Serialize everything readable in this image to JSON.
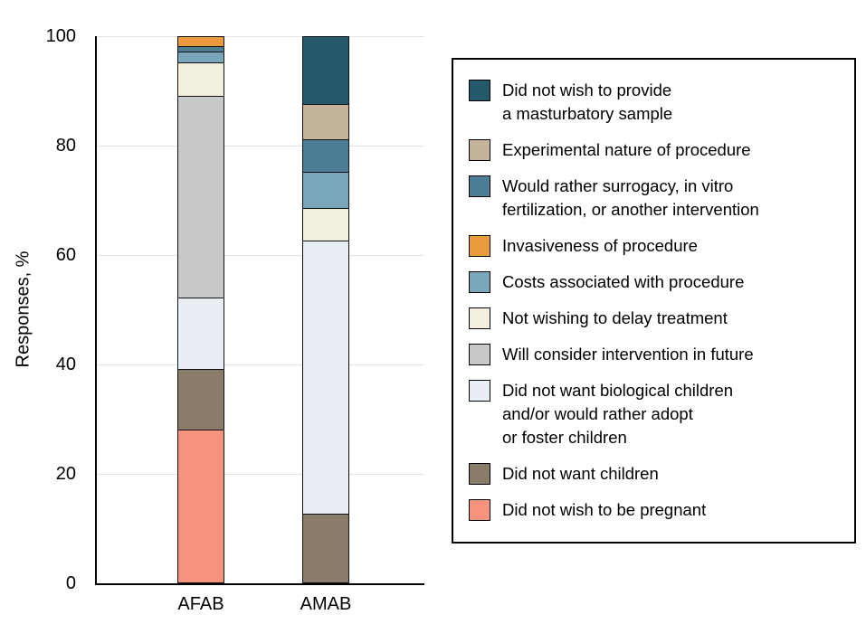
{
  "chart_data": {
    "type": "bar",
    "variant": "stacked-vertical",
    "title": "",
    "xlabel": "",
    "ylabel": "Responses, %",
    "ylim": [
      0,
      100
    ],
    "yticks": [
      0,
      20,
      40,
      60,
      80,
      100
    ],
    "grid": "horizontal",
    "legend_position": "right",
    "categories": [
      "AFAB",
      "AMAB"
    ],
    "series": [
      {
        "name": "Did not wish to be pregnant",
        "color": "#f5937e",
        "values": [
          28,
          0
        ]
      },
      {
        "name": "Did not want children",
        "color": "#8a7c6b",
        "values": [
          11,
          12.5
        ]
      },
      {
        "name": "Did not want biological children and/or would rather adopt or foster children",
        "color": "#e8eef3",
        "values": [
          13,
          50
        ]
      },
      {
        "name": "Will consider intervention in future",
        "color": "#c6c8c9",
        "values": [
          37,
          0
        ]
      },
      {
        "name": "Not wishing to delay treatment",
        "color": "#f2efdf",
        "values": [
          6,
          6
        ]
      },
      {
        "name": "Costs associated with procedure",
        "color": "#7aa6ba",
        "values": [
          2,
          6.5
        ]
      },
      {
        "name": "Would rather surrogacy, in vitro fertilization, or another intervention",
        "color": "#4e7e96",
        "values": [
          1,
          6
        ]
      },
      {
        "name": "Invasiveness of procedure",
        "color": "#eb9b3d",
        "values": [
          2,
          0
        ]
      },
      {
        "name": "Experimental nature of procedure",
        "color": "#c3b49b",
        "values": [
          0,
          6.5
        ]
      },
      {
        "name": "Did not wish to provide a masturbatory sample",
        "color": "#26586b",
        "values": [
          0,
          12.5
        ]
      }
    ],
    "legend": {
      "border": true,
      "items": [
        {
          "color": "#26586b",
          "lines": [
            "Did not wish to provide",
            "a masturbatory sample"
          ]
        },
        {
          "color": "#c3b49b",
          "lines": [
            "Experimental nature of procedure"
          ]
        },
        {
          "color": "#4e7e96",
          "lines": [
            "Would rather surrogacy, in vitro",
            "fertilization, or another intervention"
          ]
        },
        {
          "color": "#eb9b3d",
          "lines": [
            "Invasiveness of procedure"
          ]
        },
        {
          "color": "#7aa6ba",
          "lines": [
            "Costs associated with procedure"
          ]
        },
        {
          "color": "#f2efdf",
          "lines": [
            "Not wishing to delay treatment"
          ]
        },
        {
          "color": "#c6c8c9",
          "lines": [
            "Will consider intervention in future"
          ]
        },
        {
          "color": "#e8eef3",
          "lines": [
            "Did not want biological children",
            "and/or would rather adopt",
            "or foster children"
          ]
        },
        {
          "color": "#8a7c6b",
          "lines": [
            "Did not want children"
          ]
        },
        {
          "color": "#f5937e",
          "lines": [
            "Did not wish to be pregnant"
          ]
        }
      ]
    }
  },
  "colors": {
    "axis": "#000000",
    "gridline": "#e3e3e3",
    "background": "#ffffff",
    "text": "#000000"
  }
}
